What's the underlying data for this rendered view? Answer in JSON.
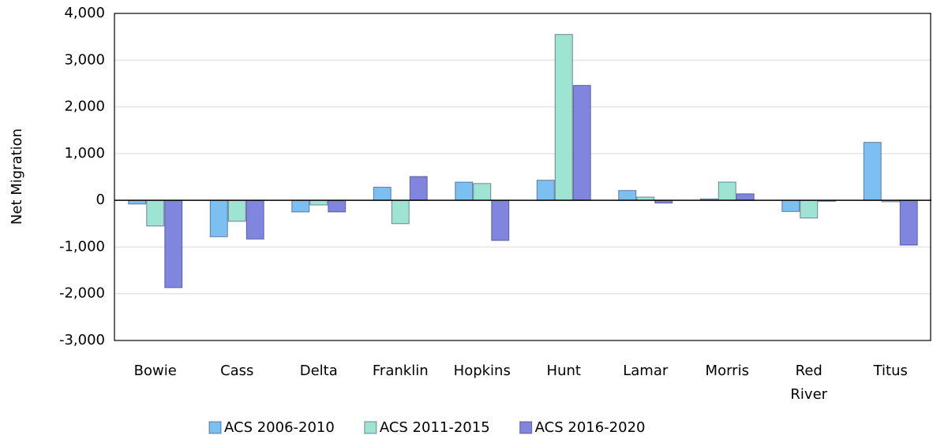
{
  "chart_data": {
    "type": "bar",
    "y_label": "Net Migration",
    "categories": [
      "Bowie",
      "Cass",
      "Delta",
      "Franklin",
      "Hopkins",
      "Hunt",
      "Lamar",
      "Morris",
      "Red River",
      "Titus"
    ],
    "series": [
      {
        "name": "ACS 2006-2010",
        "color": "#7cc0f2",
        "values": [
          -80,
          -780,
          -250,
          280,
          390,
          430,
          210,
          30,
          -240,
          1240
        ]
      },
      {
        "name": "ACS 2011-2015",
        "color": "#9fe3d2",
        "values": [
          -550,
          -450,
          -100,
          -500,
          360,
          3550,
          70,
          390,
          -380,
          -30
        ]
      },
      {
        "name": "ACS 2016-2020",
        "color": "#8085de",
        "values": [
          -1870,
          -830,
          -250,
          510,
          -860,
          2460,
          -60,
          140,
          -20,
          -960
        ]
      }
    ],
    "ylim": [
      -3000,
      4000
    ],
    "yticks": [
      {
        "value": -3000,
        "label": "-3,000"
      },
      {
        "value": -2000,
        "label": "-2,000"
      },
      {
        "value": -1000,
        "label": "-1,000"
      },
      0,
      {
        "value": 1000,
        "label": "1,000"
      },
      {
        "value": 2000,
        "label": "2,000"
      },
      {
        "value": 3000,
        "label": "3,000"
      },
      {
        "value": 4000,
        "label": "4,000"
      }
    ],
    "grid": true
  }
}
